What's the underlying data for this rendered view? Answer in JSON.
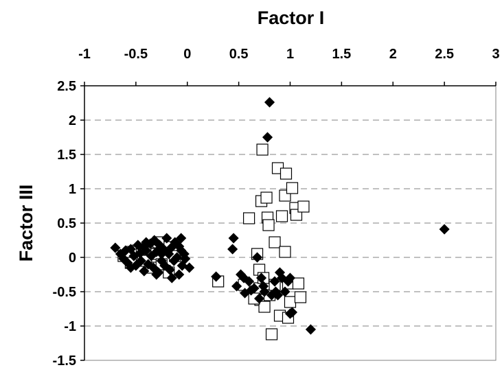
{
  "chart_data": {
    "type": "scatter",
    "title": "",
    "xlabel": "Factor I",
    "ylabel": "Factor III",
    "xlim": [
      -1,
      3
    ],
    "ylim": [
      -1.5,
      2.5
    ],
    "x_tick_labels": [
      "-1",
      "-0.5",
      "0",
      "0.5",
      "1",
      "1.5",
      "2",
      "2.5",
      "3"
    ],
    "y_tick_labels": [
      "2.5",
      "2",
      "1.5",
      "1",
      "0.5",
      "0",
      "-0.5",
      "-1",
      "-1.5"
    ],
    "x_axis_position": "top",
    "grid": "horizontal dashed",
    "series": [
      {
        "marker": "filled-diamond",
        "color": "#000000",
        "points": [
          [
            -0.7,
            0.14
          ],
          [
            -0.65,
            0.05
          ],
          [
            -0.62,
            -0.02
          ],
          [
            -0.6,
            0.1
          ],
          [
            -0.58,
            -0.08
          ],
          [
            -0.55,
            0.12
          ],
          [
            -0.52,
            0.02
          ],
          [
            -0.5,
            -0.12
          ],
          [
            -0.48,
            0.18
          ],
          [
            -0.46,
            0.06
          ],
          [
            -0.45,
            -0.05
          ],
          [
            -0.42,
            0.15
          ],
          [
            -0.42,
            -0.2
          ],
          [
            -0.4,
            0.1
          ],
          [
            -0.38,
            -0.1
          ],
          [
            -0.36,
            0.2
          ],
          [
            -0.35,
            0.02
          ],
          [
            -0.33,
            -0.15
          ],
          [
            -0.32,
            0.25
          ],
          [
            -0.3,
            0.08
          ],
          [
            -0.28,
            -0.22
          ],
          [
            -0.27,
            0.18
          ],
          [
            -0.25,
            -0.05
          ],
          [
            -0.23,
            0.12
          ],
          [
            -0.22,
            -0.12
          ],
          [
            -0.2,
            0.28
          ],
          [
            -0.18,
            0.05
          ],
          [
            -0.17,
            -0.18
          ],
          [
            -0.15,
            0.15
          ],
          [
            -0.13,
            -0.05
          ],
          [
            -0.12,
            0.22
          ],
          [
            -0.1,
            0.0
          ],
          [
            -0.08,
            -0.25
          ],
          [
            -0.06,
            0.1
          ],
          [
            -0.05,
            -0.12
          ],
          [
            -0.03,
            0.05
          ],
          [
            -0.02,
            -0.02
          ],
          [
            -0.08,
            0.16
          ],
          [
            -0.15,
            -0.3
          ],
          [
            -0.06,
            0.28
          ],
          [
            -0.55,
            -0.15
          ],
          [
            -0.4,
            0.22
          ],
          [
            -0.3,
            -0.25
          ],
          [
            -0.25,
            0.05
          ],
          [
            0.02,
            -0.15
          ],
          [
            0.28,
            -0.28
          ],
          [
            0.45,
            0.28
          ],
          [
            0.44,
            0.12
          ],
          [
            0.48,
            -0.42
          ],
          [
            0.52,
            -0.25
          ],
          [
            0.55,
            -0.3
          ],
          [
            0.56,
            -0.52
          ],
          [
            0.6,
            -0.35
          ],
          [
            0.62,
            -0.48
          ],
          [
            0.65,
            -0.45
          ],
          [
            0.68,
            0.0
          ],
          [
            0.7,
            -0.6
          ],
          [
            0.72,
            -0.3
          ],
          [
            0.75,
            -0.5
          ],
          [
            0.78,
            1.75
          ],
          [
            0.8,
            2.26
          ],
          [
            0.82,
            -0.55
          ],
          [
            0.85,
            -0.35
          ],
          [
            0.88,
            -0.55
          ],
          [
            0.9,
            -0.22
          ],
          [
            0.92,
            -0.3
          ],
          [
            0.95,
            -0.5
          ],
          [
            0.98,
            -0.35
          ],
          [
            1.0,
            -0.3
          ],
          [
            1.02,
            -0.8
          ],
          [
            1.0,
            -0.82
          ],
          [
            1.2,
            -1.05
          ],
          [
            2.5,
            0.41
          ],
          [
            0.86,
            -0.5
          ],
          [
            0.74,
            -0.42
          ]
        ]
      },
      {
        "marker": "open-square",
        "color": "#000000",
        "points": [
          [
            -0.62,
            0.02
          ],
          [
            -0.55,
            -0.08
          ],
          [
            -0.48,
            0.1
          ],
          [
            -0.43,
            -0.02
          ],
          [
            -0.4,
            0.12
          ],
          [
            -0.35,
            -0.15
          ],
          [
            -0.3,
            0.05
          ],
          [
            -0.25,
            -0.1
          ],
          [
            -0.2,
            0.15
          ],
          [
            -0.18,
            -0.22
          ],
          [
            -0.12,
            0.02
          ],
          [
            -0.4,
            -0.05
          ],
          [
            -0.28,
            0.22
          ],
          [
            -0.55,
            0.08
          ],
          [
            0.3,
            -0.35
          ],
          [
            0.6,
            0.57
          ],
          [
            0.68,
            0.05
          ],
          [
            0.7,
            -0.18
          ],
          [
            0.7,
            -0.45
          ],
          [
            0.71,
            -0.62
          ],
          [
            0.72,
            0.82
          ],
          [
            0.73,
            1.57
          ],
          [
            0.75,
            -0.72
          ],
          [
            0.77,
            0.87
          ],
          [
            0.78,
            0.58
          ],
          [
            0.79,
            0.47
          ],
          [
            0.8,
            -0.55
          ],
          [
            0.82,
            -1.12
          ],
          [
            0.85,
            0.22
          ],
          [
            0.88,
            1.3
          ],
          [
            0.9,
            -0.85
          ],
          [
            0.92,
            0.6
          ],
          [
            0.95,
            0.08
          ],
          [
            0.95,
            0.9
          ],
          [
            0.96,
            1.22
          ],
          [
            0.98,
            -0.38
          ],
          [
            1.0,
            -0.65
          ],
          [
            1.02,
            1.01
          ],
          [
            1.05,
            0.72
          ],
          [
            1.06,
            0.62
          ],
          [
            1.08,
            -0.38
          ],
          [
            1.1,
            -0.58
          ],
          [
            1.13,
            0.74
          ],
          [
            0.55,
            -0.4
          ],
          [
            0.65,
            -0.6
          ],
          [
            0.85,
            -0.4
          ],
          [
            0.98,
            -0.88
          ],
          [
            0.74,
            -0.3
          ]
        ]
      }
    ]
  }
}
